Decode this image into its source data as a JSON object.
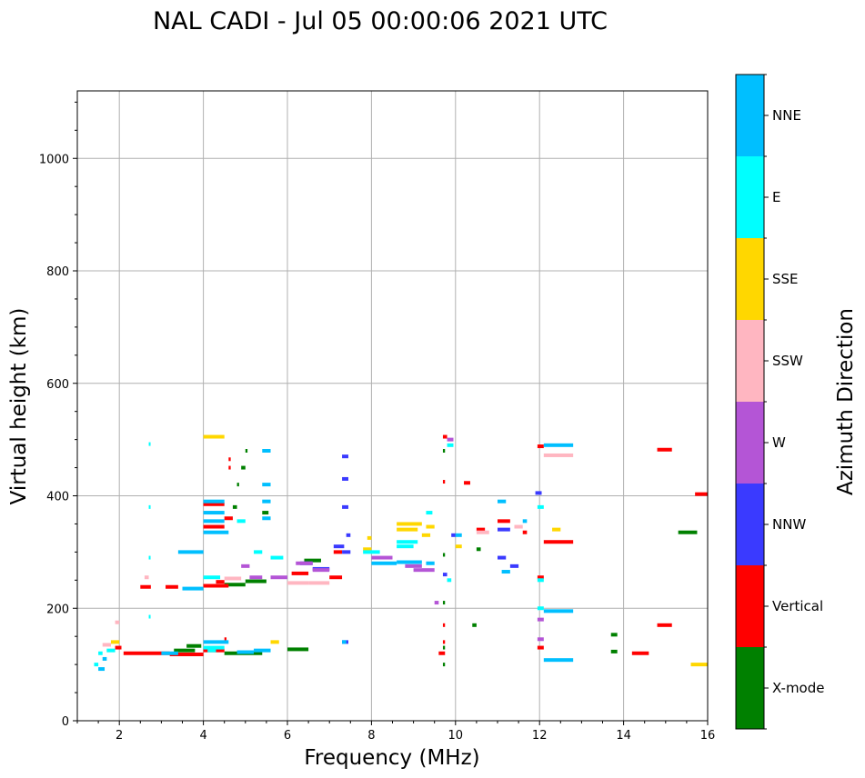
{
  "chart_data": {
    "type": "scatter",
    "title": "NAL CADI - Jul 05 00:00:06 2021 UTC",
    "xlabel": "Frequency (MHz)",
    "ylabel": "Virtual height (km)",
    "xlim": [
      1,
      16
    ],
    "ylim": [
      0,
      1120
    ],
    "x_ticks": [
      2,
      4,
      6,
      8,
      10,
      12,
      14,
      16
    ],
    "y_ticks": [
      0,
      200,
      400,
      600,
      800,
      1000
    ],
    "grid": true,
    "colorbar": {
      "label": "Azimuth Direction",
      "categories": [
        "X-mode",
        "Vertical",
        "NNW",
        "W",
        "SSW",
        "SSE",
        "E",
        "NNE"
      ],
      "colors": {
        "X-mode": "#008000",
        "Vertical": "#ff0000",
        "NNW": "#3a3aff",
        "W": "#b455d6",
        "SSW": "#ffb6c1",
        "SSE": "#ffd700",
        "E": "#00ffff",
        "NNE": "#00bfff"
      }
    },
    "series": [
      {
        "name": "X-mode",
        "points": [
          [
            3.3,
            125,
            3.8
          ],
          [
            3.6,
            133,
            3.95
          ],
          [
            4.5,
            120,
            5.4
          ],
          [
            6.0,
            127,
            6.5
          ],
          [
            4.5,
            242,
            5.0
          ],
          [
            5.0,
            248,
            5.5
          ],
          [
            6.4,
            285,
            6.8
          ],
          [
            4.7,
            380,
            4.8
          ],
          [
            4.8,
            420,
            4.85
          ],
          [
            4.9,
            450,
            5.0
          ],
          [
            5.0,
            480,
            5.05
          ],
          [
            5.4,
            370,
            5.55
          ],
          [
            9.7,
            100,
            9.75
          ],
          [
            9.7,
            130,
            9.75
          ],
          [
            9.7,
            210,
            9.75
          ],
          [
            9.7,
            295,
            9.75
          ],
          [
            9.7,
            480,
            9.75
          ],
          [
            10.4,
            170,
            10.5
          ],
          [
            10.5,
            305,
            10.6
          ],
          [
            13.7,
            123,
            13.85
          ],
          [
            13.7,
            153,
            13.85
          ],
          [
            15.3,
            335,
            15.75
          ]
        ]
      },
      {
        "name": "Vertical",
        "points": [
          [
            1.9,
            130,
            2.05
          ],
          [
            2.1,
            120,
            3.2
          ],
          [
            3.2,
            118,
            4.0
          ],
          [
            4.0,
            125,
            4.5
          ],
          [
            4.5,
            145,
            4.55
          ],
          [
            2.5,
            238,
            2.75
          ],
          [
            3.1,
            238,
            3.4
          ],
          [
            4.0,
            240,
            4.6
          ],
          [
            4.3,
            247,
            4.5
          ],
          [
            4.0,
            385,
            4.5
          ],
          [
            4.0,
            345,
            4.5
          ],
          [
            4.5,
            360,
            4.7
          ],
          [
            4.6,
            450,
            4.65
          ],
          [
            4.6,
            465,
            4.65
          ],
          [
            6.1,
            262,
            6.5
          ],
          [
            7.0,
            255,
            7.3
          ],
          [
            7.1,
            300,
            7.3
          ],
          [
            9.6,
            120,
            9.75
          ],
          [
            9.7,
            140,
            9.75
          ],
          [
            9.7,
            170,
            9.75
          ],
          [
            9.7,
            505,
            9.8
          ],
          [
            9.7,
            425,
            9.75
          ],
          [
            10.2,
            423,
            10.35
          ],
          [
            10.5,
            340,
            10.7
          ],
          [
            11.0,
            355,
            11.3
          ],
          [
            11.6,
            335,
            11.7
          ],
          [
            11.95,
            255,
            12.1
          ],
          [
            11.95,
            130,
            12.1
          ],
          [
            12.1,
            318,
            12.8
          ],
          [
            11.95,
            488,
            12.1
          ],
          [
            14.2,
            120,
            14.6
          ],
          [
            14.8,
            170,
            15.15
          ],
          [
            14.8,
            482,
            15.15
          ],
          [
            15.7,
            403,
            16.0
          ]
        ]
      },
      {
        "name": "NNW",
        "points": [
          [
            7.3,
            140,
            7.45
          ],
          [
            7.3,
            300,
            7.5
          ],
          [
            7.1,
            310,
            7.35
          ],
          [
            6.6,
            270,
            7.0
          ],
          [
            6.3,
            280,
            6.6
          ],
          [
            7.3,
            380,
            7.45
          ],
          [
            7.3,
            430,
            7.45
          ],
          [
            7.3,
            470,
            7.45
          ],
          [
            7.4,
            330,
            7.5
          ],
          [
            11.0,
            290,
            11.2
          ],
          [
            11.3,
            275,
            11.5
          ],
          [
            11.0,
            340,
            11.3
          ],
          [
            11.9,
            405,
            12.05
          ],
          [
            9.9,
            330,
            10.0
          ],
          [
            9.7,
            260,
            9.8
          ]
        ]
      },
      {
        "name": "W",
        "points": [
          [
            4.9,
            275,
            5.1
          ],
          [
            5.1,
            255,
            5.4
          ],
          [
            5.6,
            255,
            6.0
          ],
          [
            6.2,
            280,
            6.6
          ],
          [
            6.6,
            268,
            7.0
          ],
          [
            8.0,
            290,
            8.5
          ],
          [
            8.8,
            275,
            9.2
          ],
          [
            9.0,
            268,
            9.5
          ],
          [
            9.5,
            210,
            9.6
          ],
          [
            9.8,
            500,
            9.95
          ],
          [
            11.95,
            145,
            12.1
          ],
          [
            11.95,
            180,
            12.1
          ]
        ]
      },
      {
        "name": "SSW",
        "points": [
          [
            1.6,
            135,
            1.8
          ],
          [
            1.9,
            175,
            2.0
          ],
          [
            2.6,
            255,
            2.7
          ],
          [
            4.5,
            253,
            4.9
          ],
          [
            6.0,
            245,
            6.5
          ],
          [
            6.5,
            245,
            7.0
          ],
          [
            10.5,
            335,
            10.8
          ],
          [
            11.4,
            345,
            11.6
          ],
          [
            12.1,
            472,
            12.8
          ]
        ]
      },
      {
        "name": "SSE",
        "points": [
          [
            1.8,
            140,
            2.0
          ],
          [
            4.0,
            505,
            4.5
          ],
          [
            5.6,
            140,
            5.8
          ],
          [
            7.8,
            305,
            8.0
          ],
          [
            7.9,
            325,
            8.0
          ],
          [
            8.6,
            340,
            9.1
          ],
          [
            8.6,
            350,
            9.2
          ],
          [
            9.2,
            330,
            9.4
          ],
          [
            9.3,
            345,
            9.5
          ],
          [
            10.0,
            310,
            10.15
          ],
          [
            12.3,
            340,
            12.5
          ],
          [
            15.6,
            100,
            16.0
          ]
        ]
      },
      {
        "name": "E",
        "points": [
          [
            1.4,
            100,
            1.5
          ],
          [
            1.5,
            120,
            1.6
          ],
          [
            1.7,
            125,
            1.9
          ],
          [
            4.0,
            130,
            4.5
          ],
          [
            4.1,
            125,
            4.3
          ],
          [
            2.7,
            185,
            2.72
          ],
          [
            2.7,
            290,
            2.72
          ],
          [
            2.7,
            380,
            2.72
          ],
          [
            2.7,
            492,
            2.72
          ],
          [
            4.0,
            255,
            4.4
          ],
          [
            4.8,
            355,
            5.0
          ],
          [
            5.2,
            300,
            5.4
          ],
          [
            5.6,
            290,
            5.9
          ],
          [
            7.8,
            300,
            8.2
          ],
          [
            8.6,
            310,
            9.0
          ],
          [
            8.6,
            318,
            9.1
          ],
          [
            9.3,
            370,
            9.45
          ],
          [
            9.8,
            250,
            9.9
          ],
          [
            9.8,
            490,
            9.95
          ],
          [
            11.95,
            200,
            12.1
          ],
          [
            11.95,
            250,
            12.1
          ],
          [
            11.95,
            380,
            12.1
          ]
        ]
      },
      {
        "name": "NNE",
        "points": [
          [
            1.5,
            92,
            1.65
          ],
          [
            1.6,
            110,
            1.7
          ],
          [
            3.0,
            120,
            3.4
          ],
          [
            4.0,
            140,
            4.6
          ],
          [
            4.8,
            122,
            5.2
          ],
          [
            5.2,
            125,
            5.6
          ],
          [
            3.4,
            300,
            4.0
          ],
          [
            3.5,
            235,
            4.0
          ],
          [
            4.0,
            335,
            4.6
          ],
          [
            4.0,
            355,
            4.5
          ],
          [
            4.0,
            370,
            4.5
          ],
          [
            4.0,
            390,
            4.5
          ],
          [
            5.4,
            390,
            5.6
          ],
          [
            5.4,
            420,
            5.6
          ],
          [
            5.4,
            480,
            5.6
          ],
          [
            5.4,
            360,
            5.6
          ],
          [
            7.3,
            140,
            7.4
          ],
          [
            8.0,
            280,
            8.6
          ],
          [
            8.6,
            282,
            9.2
          ],
          [
            9.3,
            280,
            9.5
          ],
          [
            10.0,
            330,
            10.15
          ],
          [
            11.0,
            390,
            11.2
          ],
          [
            11.6,
            355,
            11.7
          ],
          [
            12.1,
            108,
            12.8
          ],
          [
            12.1,
            195,
            12.8
          ],
          [
            12.1,
            490,
            12.8
          ],
          [
            11.1,
            265,
            11.3
          ]
        ]
      }
    ]
  }
}
